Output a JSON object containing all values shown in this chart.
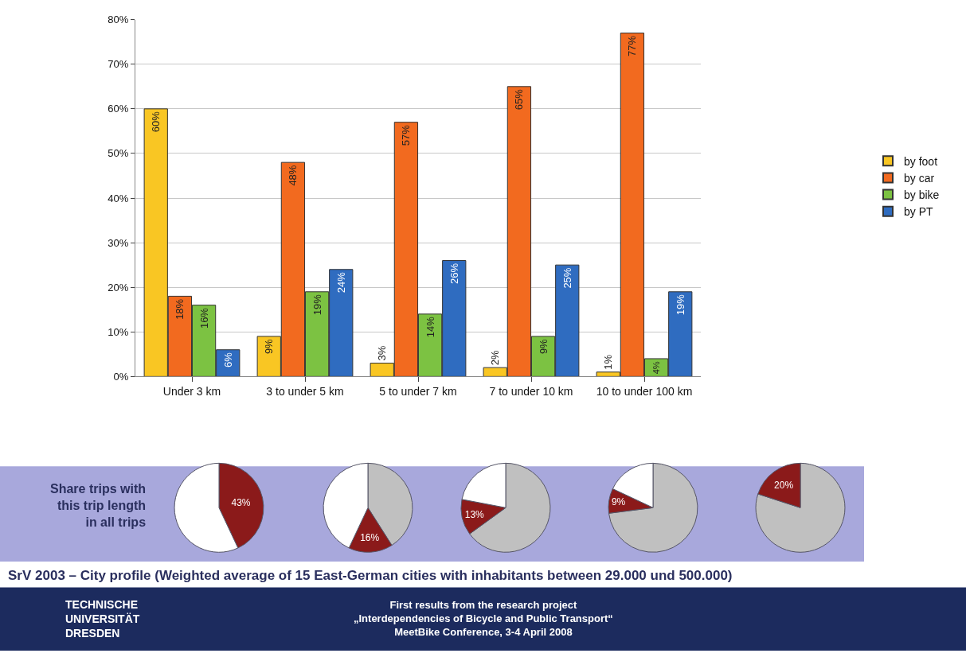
{
  "chart_data": [
    {
      "type": "bar",
      "categories": [
        "Under 3 km",
        "3 to under 5 km",
        "5 to under 7 km",
        "7 to under 10 km",
        "10 to under 100 km"
      ],
      "series": [
        {
          "name": "by foot",
          "color": "#f9c623",
          "values": [
            60,
            9,
            3,
            2,
            1
          ],
          "value_labels": [
            "60%",
            "9%",
            "3%",
            "2%",
            "1%"
          ]
        },
        {
          "name": "by car",
          "color": "#f26a1f",
          "values": [
            18,
            48,
            57,
            65,
            77
          ],
          "value_labels": [
            "18%",
            "48%",
            "57%",
            "65%",
            "77%"
          ]
        },
        {
          "name": "by bike",
          "color": "#7cc242",
          "values": [
            16,
            19,
            14,
            9,
            4
          ],
          "value_labels": [
            "16%",
            "19%",
            "14%",
            "9%",
            "4%"
          ]
        },
        {
          "name": "by PT",
          "color": "#2f6cc0",
          "values": [
            6,
            24,
            26,
            25,
            19
          ],
          "value_labels": [
            "6%",
            "24%",
            "26%",
            "25%",
            "19%"
          ]
        }
      ],
      "ylim": [
        0,
        80
      ],
      "yticks": [
        {
          "value": 0,
          "label": "0%"
        },
        {
          "value": 10,
          "label": "10%"
        },
        {
          "value": 20,
          "label": "20%"
        },
        {
          "value": 30,
          "label": "30%"
        },
        {
          "value": 40,
          "label": "40%"
        },
        {
          "value": 50,
          "label": "50%"
        },
        {
          "value": 60,
          "label": "60%"
        },
        {
          "value": 70,
          "label": "70%"
        },
        {
          "value": 80,
          "label": "80%"
        }
      ],
      "grid": "y",
      "legend": "right",
      "annotations": [
        "SrV 2003 – City profile (Weighted average of 15 East-German cities with inhabitants between 29.000 und 500.000)",
        "TECHNISCHE\nUNIVERSITÄT\nDRESDEN",
        "First results from the research project\n„Interdependencies of Bicycle and Public Transport“\nMeetBike Conference, 3-4 April 2008"
      ]
    },
    {
      "type": "pie",
      "categories": [
        null,
        null
      ],
      "values": [
        43,
        57
      ],
      "colors": [
        "#8b1a1a",
        "#ffffff"
      ],
      "value_labels": [
        "43%",
        null
      ],
      "annotations": [
        "Share trips with\nthis trip length\nin all trips"
      ]
    },
    {
      "type": "pie",
      "categories": [
        null,
        null,
        null
      ],
      "values": [
        41,
        16,
        43
      ],
      "colors": [
        "#c0c0c0",
        "#8b1a1a",
        "#ffffff"
      ],
      "value_labels": [
        null,
        "16%",
        null
      ]
    },
    {
      "type": "pie",
      "categories": [
        null,
        null,
        null
      ],
      "values": [
        65,
        13,
        22
      ],
      "colors": [
        "#c0c0c0",
        "#8b1a1a",
        "#ffffff"
      ],
      "value_labels": [
        null,
        "13%",
        null
      ]
    },
    {
      "type": "pie",
      "categories": [
        null,
        null,
        null
      ],
      "values": [
        73,
        9,
        18
      ],
      "colors": [
        "#c0c0c0",
        "#8b1a1a",
        "#ffffff"
      ],
      "value_labels": [
        null,
        "9%",
        null
      ]
    },
    {
      "type": "pie",
      "categories": [
        null,
        null
      ],
      "values": [
        80,
        20
      ],
      "colors": [
        "#c0c0c0",
        "#8b1a1a"
      ],
      "value_labels": [
        null,
        "20%"
      ]
    }
  ]
}
